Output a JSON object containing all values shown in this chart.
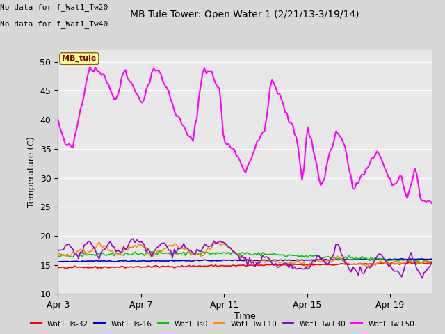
{
  "title": "MB Tule Tower: Open Water 1 (2/21/13-3/19/14)",
  "ylabel": "Temperature (C)",
  "xlabel": "Time",
  "annotation_lines": [
    "No data for f_Wat1_Tw20",
    "No data for f_Wat1_Tw40"
  ],
  "ylim": [
    10,
    52
  ],
  "yticks": [
    10,
    15,
    20,
    25,
    30,
    35,
    40,
    45,
    50
  ],
  "bg_color": "#d8d8d8",
  "plot_bg": "#e8e8e8",
  "legend_labels": [
    "Wat1_Ts-32",
    "Wat1_Ts-16",
    "Wat1_Ts0",
    "Wat1_Tw+10",
    "Wat1_Tw+30",
    "Wat1_Tw+50"
  ],
  "legend_colors": [
    "#ff0000",
    "#0000cc",
    "#00cc00",
    "#ff8800",
    "#9900cc",
    "#ff00ff"
  ],
  "mb_tule_color": "#ff00ff",
  "xtick_labels": [
    "Apr 3",
    "Apr 7",
    "Apr 11",
    "Apr 15",
    "Apr 19"
  ],
  "xtick_positions": [
    0,
    4,
    8,
    12,
    16
  ]
}
